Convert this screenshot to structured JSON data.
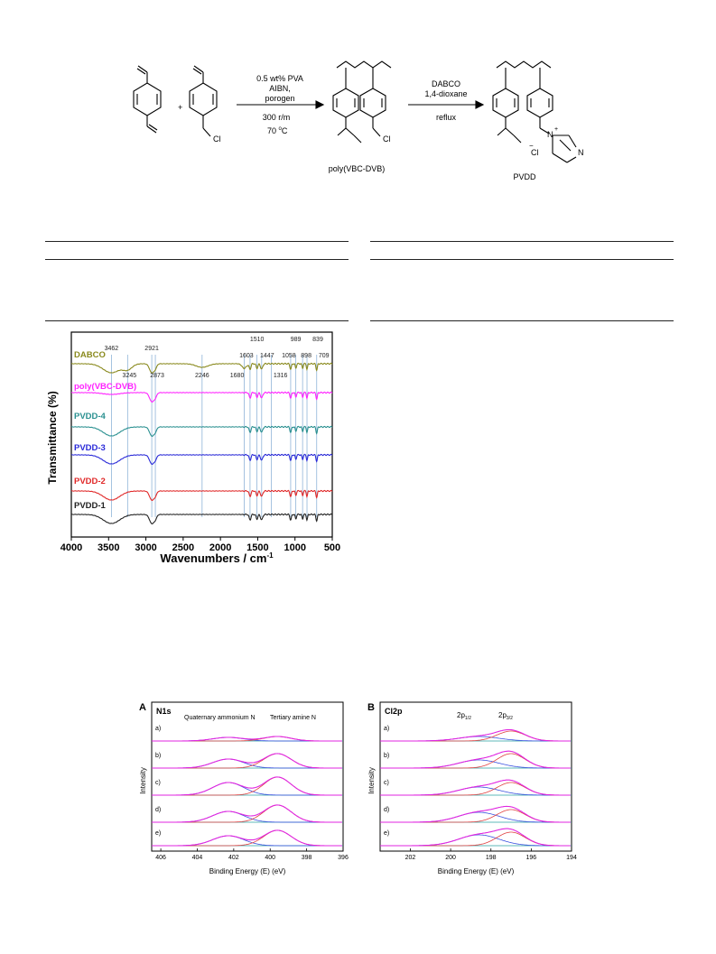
{
  "scheme": {
    "plus": "+",
    "step1": {
      "line1": "0.5 wt% PVA",
      "line2": "AIBN,",
      "line3": "porogen",
      "below1": "300 r/m",
      "below2_num": "70 ",
      "below2_sup": "o",
      "below2_unit": "C"
    },
    "step2": {
      "line1": "DABCO",
      "line2": "1,4-dioxane",
      "below1": "reflux"
    },
    "cl": "Cl",
    "cl_minus": "Cl",
    "minus": "−",
    "plus_charge": "+",
    "n_atom": "N",
    "product1": "poly(VBC-DVB)",
    "product2": "PVDD"
  },
  "ftir": {
    "ylabel": "Transmittance (%)",
    "xlabel": "Wavenumbers / cm",
    "xlabel_sup": "-1",
    "xticks": [
      "4000",
      "3500",
      "3000",
      "2500",
      "2000",
      "1500",
      "1000",
      "500"
    ],
    "peak_labels": [
      "3462",
      "3245",
      "2921",
      "2873",
      "2246",
      "1680",
      "1603",
      "1510",
      "1447",
      "1316",
      "1058",
      "989",
      "898",
      "839",
      "709"
    ],
    "series": [
      {
        "name": "DABCO",
        "color": "#8a8a1e"
      },
      {
        "name": "poly(VBC-DVB)",
        "color": "#ff22ff"
      },
      {
        "name": "PVDD-4",
        "color": "#2a9090"
      },
      {
        "name": "PVDD-3",
        "color": "#2a2ad8"
      },
      {
        "name": "PVDD-2",
        "color": "#e02828"
      },
      {
        "name": "PVDD-1",
        "color": "#222222"
      }
    ]
  },
  "xps_a": {
    "panel": "A",
    "tag": "N1s",
    "peak_left": "Quaternary ammonium N",
    "peak_right": "Tertiary amine N",
    "ylabel": "Intensity",
    "xlabel": "Binding Energy (E) (eV)",
    "xticks": [
      "406",
      "404",
      "402",
      "400",
      "398",
      "396"
    ],
    "rows": [
      "a)",
      "b)",
      "c)",
      "d)",
      "e)"
    ]
  },
  "xps_b": {
    "panel": "B",
    "tag": "Cl2p",
    "peak_left": "2p",
    "peak_left_sub": "1/2",
    "peak_right": "2p",
    "peak_right_sub": "3/2",
    "ylabel": "Intensity",
    "xlabel": "Binding Energy (E) (eV)",
    "xticks": [
      "202",
      "200",
      "198",
      "196",
      "194"
    ],
    "rows": [
      "a)",
      "b)",
      "c)",
      "d)",
      "e)"
    ]
  }
}
